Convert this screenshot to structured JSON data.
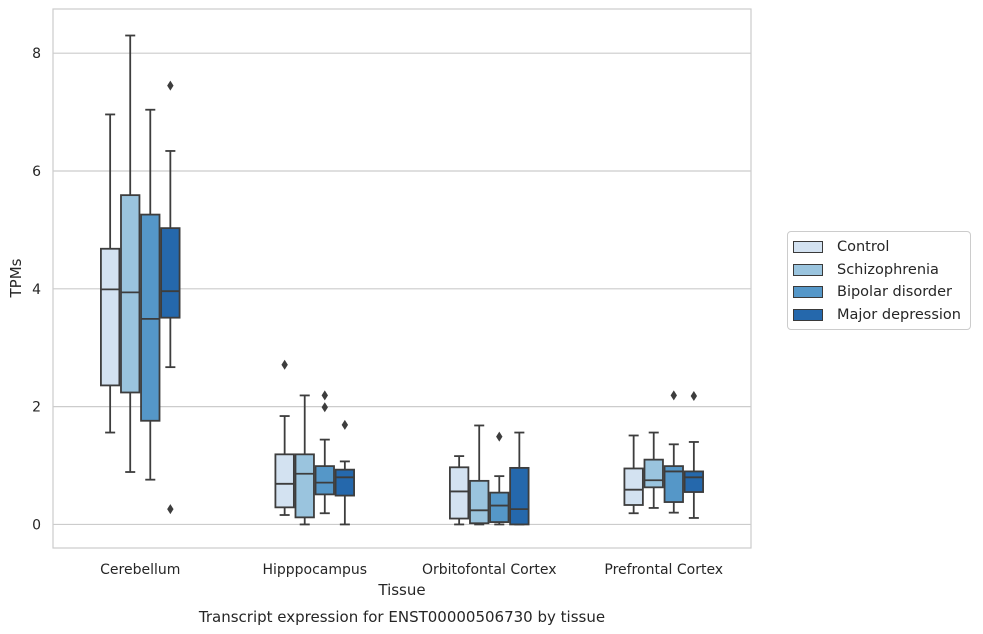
{
  "colors": {
    "Control": "#d3e2f1",
    "Schizophrenia": "#9ac4de",
    "Bipolar disorder": "#5597c8",
    "Major depression": "#2568ac",
    "grid": "#cccccc",
    "frame": "#cccccc",
    "stroke": "#3d3d3d"
  },
  "caption": "Transcript expression for ENST00000506730 by tissue",
  "chart_data": {
    "type": "box",
    "xlabel": "Tissue",
    "ylabel": "TPMs",
    "ylim": [
      -0.4,
      8.75
    ],
    "yticks": [
      0,
      2,
      4,
      6,
      8
    ],
    "grid": "horizontal",
    "legend_position": "right",
    "categories": [
      "Cerebellum",
      "Hipppocampus",
      "Orbitofontal Cortex",
      "Prefrontal Cortex"
    ],
    "series": [
      {
        "name": "Control",
        "boxes": [
          {
            "whislo": 1.56,
            "q1": 2.36,
            "med": 3.99,
            "q3": 4.68,
            "whishi": 6.96,
            "fliers": []
          },
          {
            "whislo": 0.16,
            "q1": 0.29,
            "med": 0.69,
            "q3": 1.19,
            "whishi": 1.84,
            "fliers": [
              2.71
            ]
          },
          {
            "whislo": 0.0,
            "q1": 0.1,
            "med": 0.56,
            "q3": 0.97,
            "whishi": 1.16,
            "fliers": []
          },
          {
            "whislo": 0.19,
            "q1": 0.33,
            "med": 0.59,
            "q3": 0.95,
            "whishi": 1.51,
            "fliers": []
          }
        ]
      },
      {
        "name": "Schizophrenia",
        "boxes": [
          {
            "whislo": 0.89,
            "q1": 2.24,
            "med": 3.94,
            "q3": 5.59,
            "whishi": 8.3,
            "fliers": []
          },
          {
            "whislo": 0.0,
            "q1": 0.12,
            "med": 0.86,
            "q3": 1.19,
            "whishi": 2.19,
            "fliers": []
          },
          {
            "whislo": 0.0,
            "q1": 0.02,
            "med": 0.24,
            "q3": 0.74,
            "whishi": 1.68,
            "fliers": []
          },
          {
            "whislo": 0.28,
            "q1": 0.63,
            "med": 0.75,
            "q3": 1.1,
            "whishi": 1.56,
            "fliers": []
          }
        ]
      },
      {
        "name": "Bipolar disorder",
        "boxes": [
          {
            "whislo": 0.76,
            "q1": 1.76,
            "med": 3.49,
            "q3": 5.26,
            "whishi": 7.04,
            "fliers": []
          },
          {
            "whislo": 0.19,
            "q1": 0.51,
            "med": 0.71,
            "q3": 0.99,
            "whishi": 1.44,
            "fliers": [
              1.99,
              2.19
            ]
          },
          {
            "whislo": 0.0,
            "q1": 0.04,
            "med": 0.32,
            "q3": 0.54,
            "whishi": 0.82,
            "fliers": [
              1.49
            ]
          },
          {
            "whislo": 0.2,
            "q1": 0.38,
            "med": 0.9,
            "q3": 0.99,
            "whishi": 1.36,
            "fliers": [
              2.19
            ]
          }
        ]
      },
      {
        "name": "Major depression",
        "boxes": [
          {
            "whislo": 2.67,
            "q1": 3.51,
            "med": 3.96,
            "q3": 5.03,
            "whishi": 6.34,
            "fliers": [
              0.26,
              7.45
            ]
          },
          {
            "whislo": 0.0,
            "q1": 0.49,
            "med": 0.8,
            "q3": 0.93,
            "whishi": 1.07,
            "fliers": [
              1.69
            ]
          },
          {
            "whislo": 0.0,
            "q1": 0.0,
            "med": 0.26,
            "q3": 0.96,
            "whishi": 1.56,
            "fliers": []
          },
          {
            "whislo": 0.11,
            "q1": 0.55,
            "med": 0.8,
            "q3": 0.9,
            "whishi": 1.4,
            "fliers": [
              2.18
            ]
          }
        ]
      }
    ]
  }
}
